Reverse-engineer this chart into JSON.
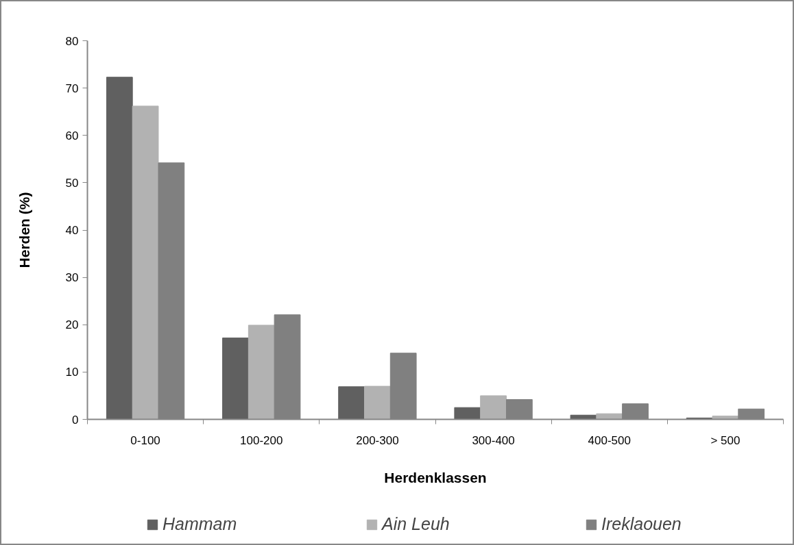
{
  "chart_data": {
    "type": "bar",
    "xlabel": "Herdenklassen",
    "ylabel": "Herden (%)",
    "categories": [
      "0-100",
      "100-200",
      "200-300",
      "300-400",
      "400-500",
      "> 500"
    ],
    "series": [
      {
        "name": "Hammam",
        "color": "#606060",
        "values": [
          72.3,
          17.2,
          6.9,
          2.5,
          0.9,
          0.3
        ]
      },
      {
        "name": "Ain Leuh",
        "color": "#b2b2b2",
        "values": [
          66.2,
          19.9,
          7.0,
          5.0,
          1.2,
          0.7
        ]
      },
      {
        "name": "Ireklaouen",
        "color": "#808080",
        "values": [
          54.2,
          22.1,
          14.0,
          4.2,
          3.3,
          2.2
        ]
      }
    ],
    "ylim": [
      0,
      80
    ],
    "yticks": [
      0,
      10,
      20,
      30,
      40,
      50,
      60,
      70,
      80
    ],
    "grid": false,
    "legend": "bottom"
  }
}
